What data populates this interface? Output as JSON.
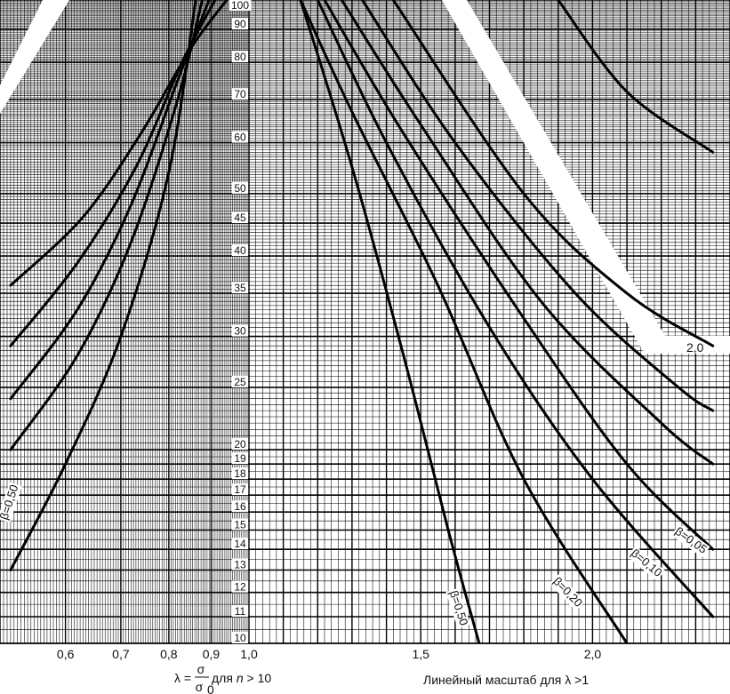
{
  "chart_data": {
    "type": "line",
    "x_ticks_left": [
      "0,6",
      "0,7",
      "0,8",
      "0,9",
      "1,0"
    ],
    "x_ticks_right": [
      "1,5",
      "2,0"
    ],
    "y_ticks": [
      "10",
      "11",
      "12",
      "13",
      "14",
      "15",
      "16",
      "17",
      "18",
      "19",
      "20",
      "25",
      "30",
      "35",
      "40",
      "45",
      "50",
      "60",
      "70",
      "80",
      "90",
      "100"
    ],
    "xlabel_left": {
      "prefix": "λ =",
      "num": "σ",
      "den": "σ",
      "den_sub": "0",
      "suffix": " для ",
      "n": "n",
      "cond": " > 10"
    },
    "xlabel_right": "Линейный масштаб для λ >1",
    "band_label": "2,0",
    "series": [
      {
        "name": "β=0,50",
        "side": "left",
        "x": [
          0.515,
          0.6,
          0.7,
          0.8,
          0.862
        ],
        "y": [
          13,
          19,
          30,
          54,
          100
        ]
      },
      {
        "side": "left",
        "x": [
          0.515,
          0.62,
          0.72,
          0.82,
          0.878
        ],
        "y": [
          20,
          28,
          42,
          70,
          100
        ]
      },
      {
        "side": "left",
        "x": [
          0.515,
          0.62,
          0.72,
          0.82,
          0.895
        ],
        "y": [
          24,
          33,
          48,
          75,
          100
        ]
      },
      {
        "side": "left",
        "x": [
          0.515,
          0.62,
          0.73,
          0.83,
          0.91
        ],
        "y": [
          29,
          39,
          55,
          80,
          100
        ]
      },
      {
        "side": "left",
        "x": [
          0.515,
          0.63,
          0.74,
          0.85,
          0.94
        ],
        "y": [
          36,
          46,
          62,
          84,
          100
        ]
      },
      {
        "name": "β=0,50",
        "side": "right",
        "x": [
          1.15,
          1.3,
          1.45,
          1.58,
          1.67
        ],
        "y": [
          100,
          55,
          28,
          15,
          10
        ]
      },
      {
        "name": "β=0,20",
        "side": "right",
        "x": [
          1.15,
          1.3,
          1.55,
          1.8,
          2.1
        ],
        "y": [
          100,
          67,
          36,
          18,
          10
        ]
      },
      {
        "name": "β=0,10",
        "side": "right",
        "x": [
          1.2,
          1.4,
          1.7,
          2.0,
          2.35
        ],
        "y": [
          100,
          60,
          31,
          18,
          11
        ]
      },
      {
        "name": "β=0,05",
        "side": "right",
        "x": [
          1.22,
          1.45,
          1.8,
          2.1,
          2.35
        ],
        "y": [
          100,
          62,
          32,
          19,
          14
        ]
      },
      {
        "side": "right",
        "x": [
          1.27,
          1.5,
          1.85,
          2.2,
          2.35
        ],
        "y": [
          100,
          64,
          34,
          22,
          19
        ]
      },
      {
        "side": "right",
        "x": [
          1.33,
          1.6,
          1.95,
          2.25,
          2.35
        ],
        "y": [
          100,
          60,
          35,
          25,
          23
        ]
      },
      {
        "side": "right",
        "x": [
          1.42,
          1.8,
          2.1,
          2.35
        ],
        "y": [
          100,
          50,
          35,
          29
        ]
      },
      {
        "side": "right",
        "x": [
          1.9,
          2.1,
          2.35
        ],
        "y": [
          100,
          72,
          58
        ]
      }
    ],
    "curve_labels": [
      "β=0,50",
      "β=0,50",
      "β=0,20",
      "β=0,10",
      "β=0,05"
    ],
    "ylim": [
      10,
      100
    ],
    "xlim_left": [
      0.5,
      1.0
    ],
    "xlim_right": [
      1.0,
      2.4
    ],
    "grid": true,
    "colors": {
      "grid": "#000000",
      "curve": "#000000",
      "band": "#ffffff",
      "background": "#ffffff"
    }
  }
}
